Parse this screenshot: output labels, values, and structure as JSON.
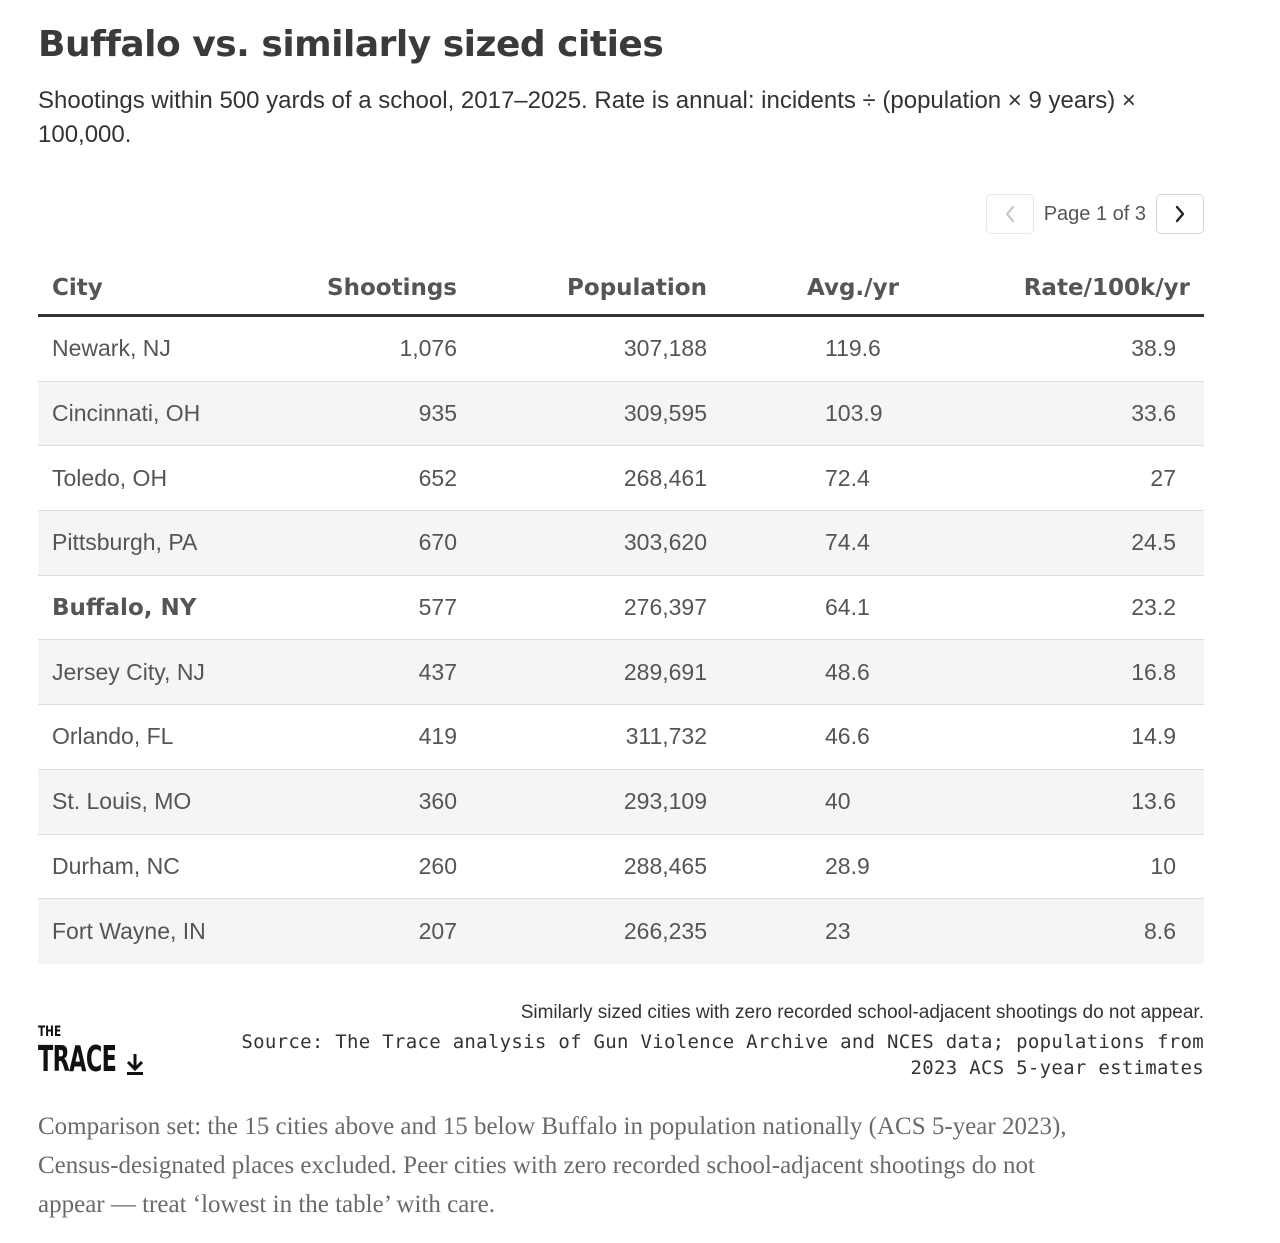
{
  "title": "Buffalo vs. similarly sized cities",
  "subtitle": "Shootings within 500 yards of a school, 2017–2025. Rate is annual: incidents ÷ (population × 9 years) × 100,000.",
  "pager": {
    "label": "Page 1 of 3",
    "prev_icon": "chevron-left-icon",
    "next_icon": "chevron-right-icon",
    "prev_disabled": true
  },
  "chart_data": {
    "type": "table",
    "columns": [
      "City",
      "Shootings",
      "Population",
      "Avg./yr",
      "Rate/100k/yr"
    ],
    "rows": [
      {
        "city": "Newark, NJ",
        "shootings": "1,076",
        "population": "307,188",
        "avg": "119.6",
        "rate": "38.9",
        "highlight": false
      },
      {
        "city": "Cincinnati, OH",
        "shootings": "935",
        "population": "309,595",
        "avg": "103.9",
        "rate": "33.6",
        "highlight": false
      },
      {
        "city": "Toledo, OH",
        "shootings": "652",
        "population": "268,461",
        "avg": "72.4",
        "rate": "27",
        "highlight": false
      },
      {
        "city": "Pittsburgh, PA",
        "shootings": "670",
        "population": "303,620",
        "avg": "74.4",
        "rate": "24.5",
        "highlight": false
      },
      {
        "city": "Buffalo, NY",
        "shootings": "577",
        "population": "276,397",
        "avg": "64.1",
        "rate": "23.2",
        "highlight": true
      },
      {
        "city": "Jersey City, NJ",
        "shootings": "437",
        "population": "289,691",
        "avg": "48.6",
        "rate": "16.8",
        "highlight": false
      },
      {
        "city": "Orlando, FL",
        "shootings": "419",
        "population": "311,732",
        "avg": "46.6",
        "rate": "14.9",
        "highlight": false
      },
      {
        "city": "St. Louis, MO",
        "shootings": "360",
        "population": "293,109",
        "avg": "40",
        "rate": "13.6",
        "highlight": false
      },
      {
        "city": "Durham, NC",
        "shootings": "260",
        "population": "288,465",
        "avg": "28.9",
        "rate": "10",
        "highlight": false
      },
      {
        "city": "Fort Wayne, IN",
        "shootings": "207",
        "population": "266,235",
        "avg": "23",
        "rate": "8.6",
        "highlight": false
      }
    ]
  },
  "note": "Similarly sized cities with zero recorded school-adjacent shootings do not appear.",
  "source": "Source: The Trace analysis of Gun Violence Archive and NCES data; populations from 2023 ACS 5-year estimates",
  "logo": {
    "small": "THE",
    "large": "TRACE",
    "download_icon": "download-icon"
  },
  "footnote": "Comparison set: the 15 cities above and 15 below Buffalo in population nationally (ACS 5-year 2023), Census-designated places excluded. Peer cities with zero recorded school-adjacent shootings do not appear — treat ‘lowest in the table’ with care.",
  "colors": {
    "text": "#333333",
    "muted": "#555555",
    "row_alt": "#f5f5f5",
    "rule": "#333333",
    "footnote": "#6a6a6a"
  }
}
